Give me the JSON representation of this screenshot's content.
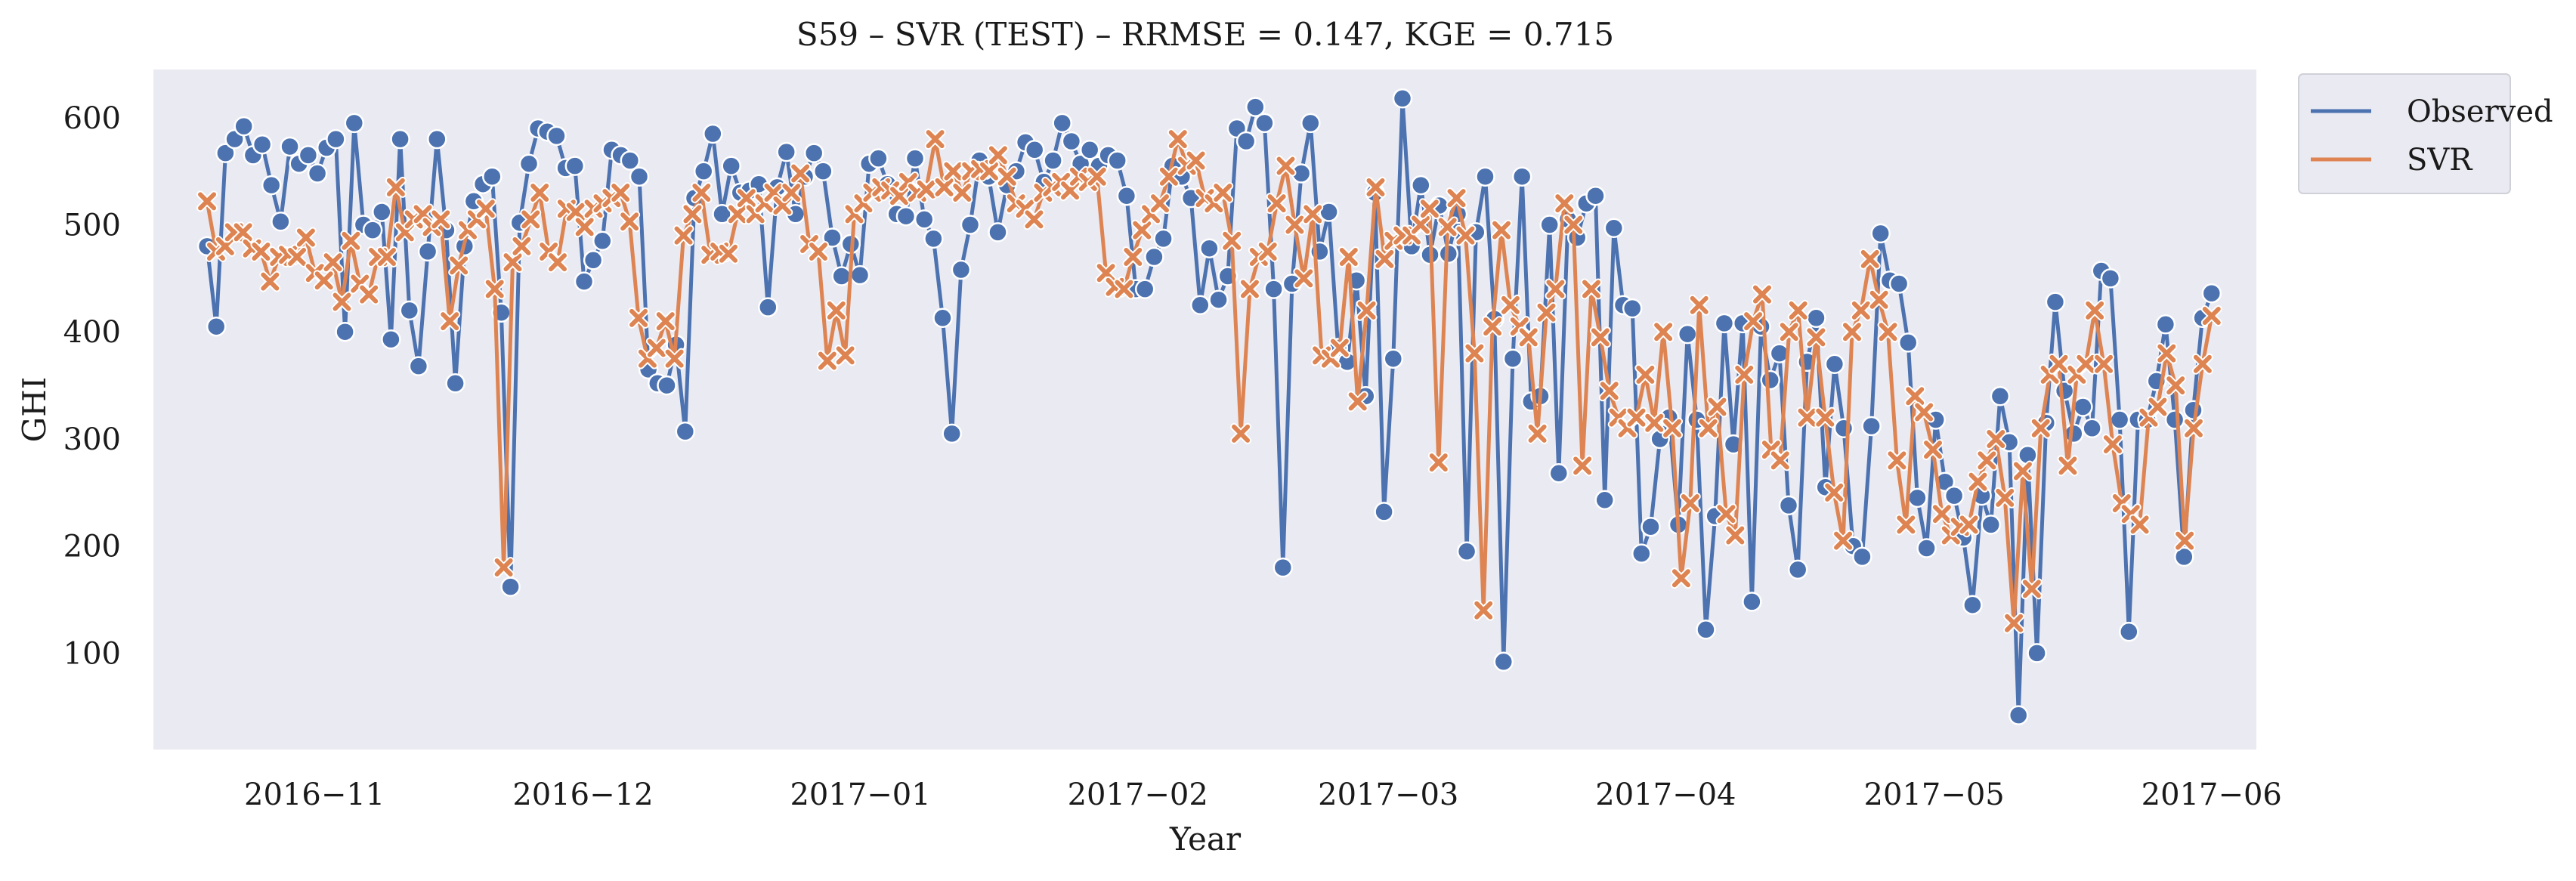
{
  "chart_data": {
    "type": "line",
    "title": "S59 – SVR (TEST) – RRMSE = 0.147, KGE = 0.715",
    "xlabel": "Year",
    "ylabel": "GHI",
    "x_start": "2016-10-20",
    "x_end": "2017-06-01",
    "xlim": [
      "2016-10-14",
      "2017-06-06"
    ],
    "ylim": [
      10,
      645
    ],
    "x_ticks": [
      {
        "date": "2016-11-01",
        "label": "2016−11"
      },
      {
        "date": "2016-12-01",
        "label": "2016−12"
      },
      {
        "date": "2017-01-01",
        "label": "2017−01"
      },
      {
        "date": "2017-02-01",
        "label": "2017−02"
      },
      {
        "date": "2017-03-01",
        "label": "2017−03"
      },
      {
        "date": "2017-04-01",
        "label": "2017−04"
      },
      {
        "date": "2017-05-01",
        "label": "2017−05"
      },
      {
        "date": "2017-06-01",
        "label": "2017−06"
      }
    ],
    "y_ticks": [
      100,
      200,
      300,
      400,
      500,
      600
    ],
    "grid": false,
    "legend_position": "outside-top-right",
    "series": [
      {
        "name": "Observed",
        "color": "#4c72b0",
        "marker": "circle",
        "values": [
          480,
          405,
          567,
          580,
          592,
          565,
          575,
          537,
          503,
          573,
          557,
          565,
          548,
          572,
          580,
          400,
          595,
          500,
          495,
          512,
          393,
          580,
          420,
          368,
          475,
          580,
          495,
          352,
          480,
          522,
          538,
          545,
          418,
          162,
          502,
          557,
          590,
          587,
          583,
          553,
          555,
          447,
          467,
          485,
          570,
          565,
          560,
          545,
          365,
          352,
          350,
          388,
          307,
          525,
          550,
          585,
          510,
          555,
          530,
          532,
          538,
          423,
          535,
          568,
          510,
          545,
          567,
          550,
          488,
          452,
          482,
          453,
          557,
          562,
          538,
          510,
          508,
          562,
          505,
          487,
          413,
          305,
          458,
          500,
          560,
          545,
          493,
          537,
          550,
          577,
          570,
          540,
          560,
          595,
          578,
          557,
          570,
          555,
          565,
          560,
          527,
          440,
          440,
          470,
          487,
          555,
          545,
          525,
          425,
          478,
          430,
          452,
          590,
          578,
          610,
          595,
          440,
          180,
          445,
          548,
          595,
          475,
          512,
          385,
          372,
          448,
          340,
          530,
          232,
          375,
          618,
          480,
          537,
          472,
          518,
          473,
          510,
          195,
          493,
          545,
          412,
          92,
          375,
          545,
          335,
          340,
          500,
          268,
          505,
          488,
          520,
          527,
          243,
          497,
          425,
          422,
          193,
          218,
          300,
          320,
          220,
          398,
          318,
          122,
          228,
          408,
          295,
          408,
          148,
          405,
          355,
          380,
          238,
          178,
          372,
          413,
          255,
          370,
          310,
          200,
          190,
          312,
          492,
          448,
          445,
          390,
          245,
          198,
          318,
          260,
          247,
          208,
          145,
          247,
          220,
          340,
          297,
          42,
          285,
          100,
          315,
          428,
          345,
          305,
          330,
          310,
          457,
          450,
          318,
          120,
          318,
          318,
          354,
          407,
          318,
          190,
          327,
          413,
          436
        ]
      },
      {
        "name": "SVR",
        "color": "#dd8452",
        "marker": "x",
        "values": [
          522,
          475,
          480,
          493,
          493,
          478,
          475,
          447,
          470,
          472,
          470,
          488,
          455,
          448,
          465,
          428,
          485,
          445,
          435,
          470,
          470,
          535,
          493,
          505,
          510,
          498,
          505,
          410,
          462,
          495,
          505,
          515,
          440,
          180,
          465,
          480,
          505,
          530,
          475,
          465,
          515,
          512,
          498,
          515,
          520,
          525,
          530,
          503,
          413,
          375,
          385,
          410,
          375,
          490,
          510,
          530,
          472,
          475,
          473,
          510,
          525,
          510,
          520,
          530,
          518,
          530,
          548,
          482,
          475,
          373,
          420,
          378,
          510,
          520,
          530,
          535,
          532,
          527,
          540,
          530,
          533,
          580,
          535,
          550,
          530,
          550,
          552,
          550,
          565,
          545,
          520,
          515,
          505,
          530,
          535,
          540,
          532,
          545,
          540,
          545,
          455,
          442,
          440,
          470,
          495,
          510,
          520,
          545,
          580,
          555,
          560,
          525,
          520,
          530,
          485,
          305,
          440,
          470,
          475,
          520,
          555,
          500,
          450,
          510,
          378,
          375,
          385,
          470,
          335,
          420,
          535,
          468,
          485,
          490,
          490,
          500,
          515,
          278,
          498,
          525,
          490,
          380,
          140,
          405,
          495,
          425,
          405,
          395,
          305,
          418,
          440,
          520,
          500,
          275,
          440,
          395,
          345,
          320,
          310,
          320,
          360,
          315,
          400,
          310,
          170,
          240,
          425,
          310,
          330,
          230,
          210,
          360,
          410,
          435,
          290,
          280,
          400,
          420,
          320,
          395,
          320,
          250,
          205,
          400,
          420,
          468,
          430,
          400,
          280,
          220,
          340,
          325,
          290,
          230,
          210,
          218,
          220,
          260,
          280,
          300,
          245,
          128,
          270,
          160,
          310,
          360,
          370,
          275,
          360,
          370,
          420,
          370,
          295,
          240,
          230,
          220,
          320,
          330,
          380,
          350,
          205,
          310,
          370,
          415
        ]
      }
    ]
  }
}
